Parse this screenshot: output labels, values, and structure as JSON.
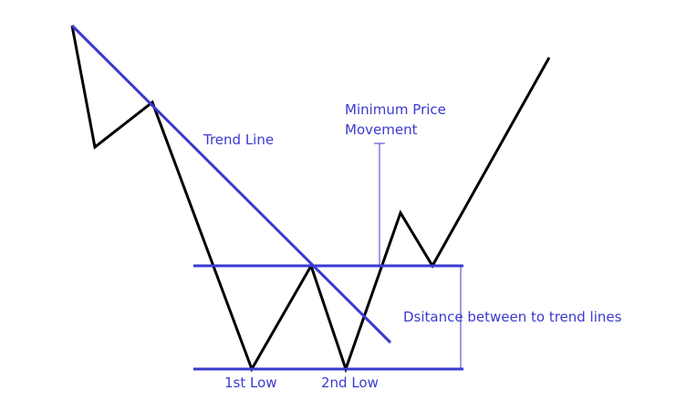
{
  "colors": {
    "price_line": "#000000",
    "annotation": "#3a3ad0",
    "background": "#ffffff"
  },
  "labels": {
    "trend_line": "Trend Line",
    "minimum_price_line1": "Minimum Price",
    "minimum_price_line2": "Movement",
    "distance": "Dsitance between to trend lines",
    "first_low": "1st Low",
    "second_low": "2nd Low"
  }
}
